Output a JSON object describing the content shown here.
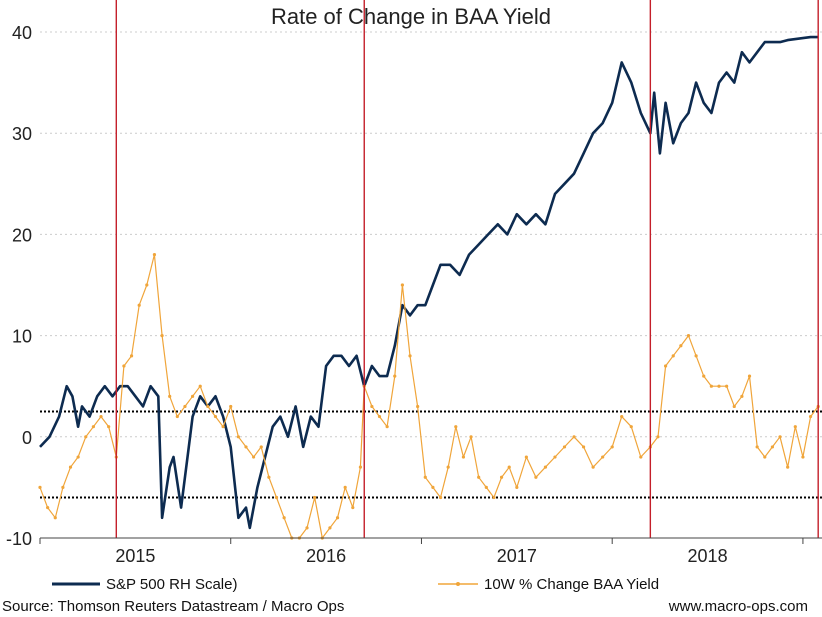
{
  "chart_data": {
    "type": "line",
    "title": "Rate of Change in BAA Yield",
    "xlabel": "",
    "ylabel": "",
    "ylim": [
      -10,
      40
    ],
    "y_ticks": [
      "40",
      "30",
      "20",
      "10",
      "0",
      "-10"
    ],
    "x_ticks": [
      "2015",
      "2016",
      "2017",
      "2018"
    ],
    "x_range": [
      2014.5,
      2018.6
    ],
    "grid": "horizontal dotted",
    "reference_lines": [
      2.5,
      -6
    ],
    "event_lines": [
      2014.9,
      2016.2,
      2017.7,
      2018.58
    ],
    "colors": {
      "sp500": "#0d2b50",
      "baa": "#f0a53a",
      "event": "#c41f2a",
      "grid": "#cccccc"
    },
    "series": [
      {
        "name": "S&P 500 RH Scale)",
        "color": "#0d2b50",
        "x": [
          2014.5,
          2014.55,
          2014.6,
          2014.64,
          2014.67,
          2014.7,
          2014.72,
          2014.76,
          2014.8,
          2014.84,
          2014.88,
          2014.92,
          2014.96,
          2015.0,
          2015.04,
          2015.08,
          2015.12,
          2015.14,
          2015.18,
          2015.2,
          2015.24,
          2015.28,
          2015.3,
          2015.34,
          2015.38,
          2015.42,
          2015.46,
          2015.5,
          2015.54,
          2015.58,
          2015.6,
          2015.64,
          2015.68,
          2015.72,
          2015.76,
          2015.8,
          2015.84,
          2015.88,
          2015.92,
          2015.96,
          2016.0,
          2016.04,
          2016.08,
          2016.12,
          2016.16,
          2016.2,
          2016.24,
          2016.28,
          2016.32,
          2016.36,
          2016.4,
          2016.44,
          2016.48,
          2016.52,
          2016.56,
          2016.6,
          2016.65,
          2016.7,
          2016.75,
          2016.8,
          2016.85,
          2016.9,
          2016.95,
          2017.0,
          2017.05,
          2017.1,
          2017.15,
          2017.2,
          2017.25,
          2017.3,
          2017.35,
          2017.4,
          2017.45,
          2017.5,
          2017.55,
          2017.6,
          2017.65,
          2017.7,
          2017.72,
          2017.75,
          2017.78,
          2017.82,
          2017.86,
          2017.9,
          2017.94,
          2017.98,
          2018.02,
          2018.06,
          2018.1,
          2018.14,
          2018.18,
          2018.22,
          2018.26,
          2018.3,
          2018.34,
          2018.38,
          2018.42,
          2018.46,
          2018.5,
          2018.54,
          2018.58
        ],
        "y": [
          -1,
          0,
          2,
          5,
          4,
          1,
          3,
          2,
          4,
          5,
          4,
          5,
          5,
          4,
          3,
          5,
          4,
          -8,
          -3,
          -2,
          -7,
          -1,
          2,
          4,
          3,
          4,
          2,
          -1,
          -8,
          -7,
          -9,
          -5,
          -2,
          1,
          2,
          0,
          3,
          -1,
          2,
          1,
          7,
          8,
          8,
          7,
          8,
          5,
          7,
          6,
          6,
          9,
          13,
          12,
          13,
          13,
          15,
          17,
          17,
          16,
          18,
          19,
          20,
          21,
          20,
          22,
          21,
          22,
          21,
          24,
          25,
          26,
          28,
          30,
          31,
          33,
          37,
          35,
          32,
          30,
          34,
          28,
          33,
          29,
          31,
          32,
          35,
          33,
          32,
          35,
          36,
          35,
          38,
          37,
          38,
          39,
          39,
          39,
          39.2,
          39.3,
          39.4,
          39.5,
          39.5
        ]
      },
      {
        "name": "10W % Change BAA Yield",
        "color": "#f0a53a",
        "x": [
          2014.5,
          2014.54,
          2014.58,
          2014.62,
          2014.66,
          2014.7,
          2014.74,
          2014.78,
          2014.82,
          2014.86,
          2014.9,
          2014.94,
          2014.98,
          2015.02,
          2015.06,
          2015.1,
          2015.14,
          2015.18,
          2015.22,
          2015.26,
          2015.3,
          2015.34,
          2015.38,
          2015.42,
          2015.46,
          2015.5,
          2015.54,
          2015.58,
          2015.62,
          2015.66,
          2015.7,
          2015.74,
          2015.78,
          2015.82,
          2015.86,
          2015.9,
          2015.94,
          2015.98,
          2016.02,
          2016.06,
          2016.1,
          2016.14,
          2016.18,
          2016.2,
          2016.24,
          2016.28,
          2016.32,
          2016.36,
          2016.4,
          2016.44,
          2016.48,
          2016.52,
          2016.56,
          2016.6,
          2016.64,
          2016.68,
          2016.72,
          2016.76,
          2016.8,
          2016.84,
          2016.88,
          2016.92,
          2016.96,
          2017.0,
          2017.05,
          2017.1,
          2017.15,
          2017.2,
          2017.25,
          2017.3,
          2017.35,
          2017.4,
          2017.45,
          2017.5,
          2017.55,
          2017.6,
          2017.65,
          2017.7,
          2017.74,
          2017.78,
          2017.82,
          2017.86,
          2017.9,
          2017.94,
          2017.98,
          2018.02,
          2018.06,
          2018.1,
          2018.14,
          2018.18,
          2018.22,
          2018.26,
          2018.3,
          2018.34,
          2018.38,
          2018.42,
          2018.46,
          2018.5,
          2018.54,
          2018.58
        ],
        "y": [
          -5,
          -7,
          -8,
          -5,
          -3,
          -2,
          0,
          1,
          2,
          1,
          -2,
          7,
          8,
          13,
          15,
          18,
          10,
          4,
          2,
          3,
          4,
          5,
          3,
          2,
          1,
          3,
          0,
          -1,
          -2,
          -1,
          -4,
          -6,
          -8,
          -10,
          -10,
          -9,
          -6,
          -10,
          -9,
          -8,
          -5,
          -7,
          -3,
          5,
          3,
          2,
          1,
          6,
          15,
          8,
          3,
          -4,
          -5,
          -6,
          -3,
          1,
          -2,
          0,
          -4,
          -5,
          -6,
          -4,
          -3,
          -5,
          -2,
          -4,
          -3,
          -2,
          -1,
          0,
          -1,
          -3,
          -2,
          -1,
          2,
          1,
          -2,
          -1,
          0,
          7,
          8,
          9,
          10,
          8,
          6,
          5,
          5,
          5,
          3,
          4,
          6,
          -1,
          -2,
          -1,
          0,
          -3,
          1,
          -2,
          2,
          3
        ]
      }
    ]
  },
  "legend": {
    "sp500_label": "S&P 500 RH Scale)",
    "baa_label": "10W % Change BAA Yield"
  },
  "footer": {
    "source": "Source: Thomson Reuters Datastream / Macro Ops",
    "site": "www.macro-ops.com"
  }
}
